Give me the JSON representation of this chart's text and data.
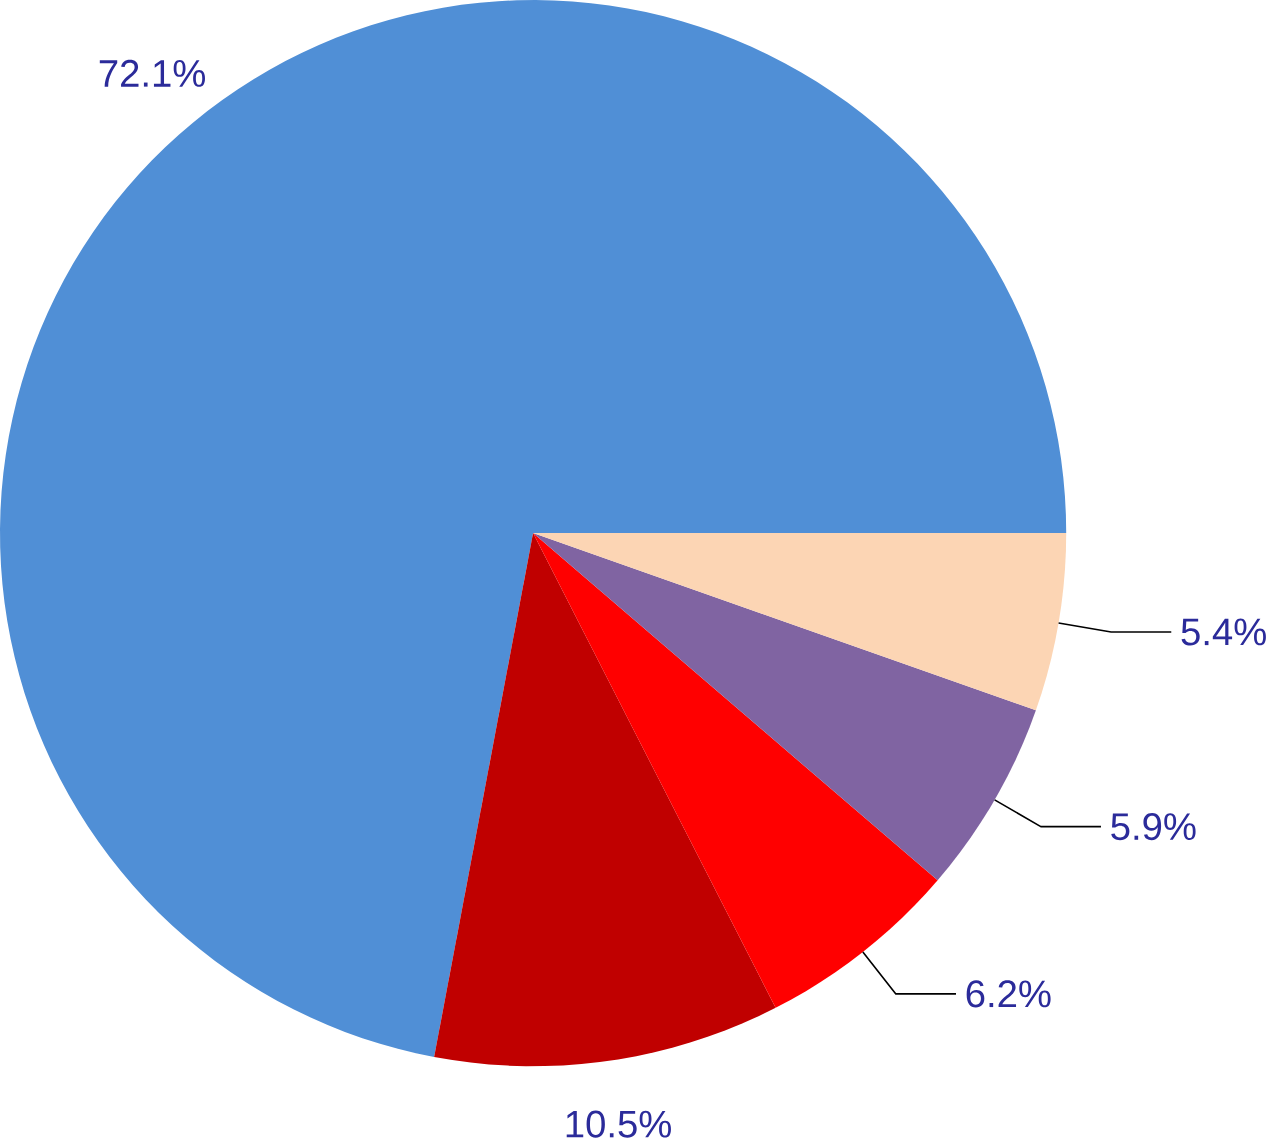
{
  "chart_data": {
    "type": "pie",
    "categories": [
      null,
      null,
      null,
      null,
      null
    ],
    "values": [
      72.1,
      10.5,
      6.2,
      5.9,
      5.4
    ],
    "colors": [
      "#508fd6",
      "#c00000",
      "#ff0000",
      "#8064a2",
      "#fcd5b4"
    ],
    "value_labels": [
      "72.1%",
      "10.5%",
      "6.2%",
      "5.9%",
      "5.4%"
    ]
  }
}
